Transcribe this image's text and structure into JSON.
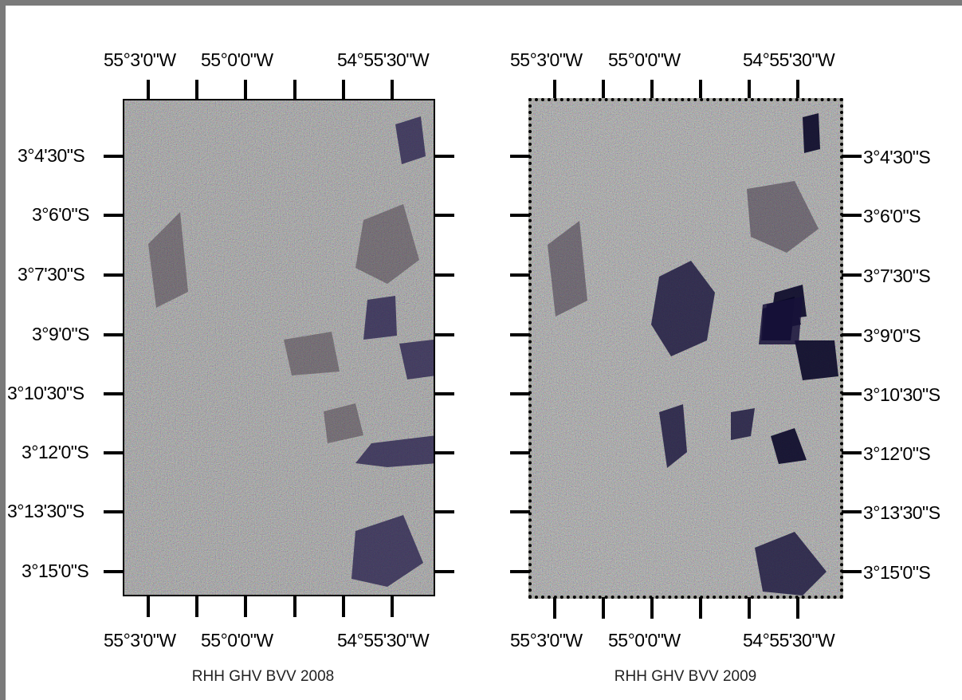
{
  "maps": [
    {
      "caption": "RHH GHV BVV 2008",
      "lon_top": [
        "55°3'0\"W",
        "55°0'0\"W",
        "54°55'30\"W"
      ],
      "lon_bottom": [
        "55°3'0\"W",
        "55°0'0\"W",
        "54°55'30\"W"
      ],
      "lat": [
        "3°4'30\"S",
        "3°6'0\"S",
        "3°7'30\"S",
        "3°9'0\"S",
        "3°10'30\"S",
        "3°12'0\"S",
        "3°13'30\"S",
        "3°15'0\"S"
      ],
      "lat_side": "left"
    },
    {
      "caption": "RHH GHV BVV 2009",
      "lon_top": [
        "55°3'0\"W",
        "55°0'0\"W",
        "54°55'30\"W"
      ],
      "lon_bottom": [
        "55°3'0\"W",
        "55°0'0\"W",
        "54°55'30\"W"
      ],
      "lat": [
        "3°4'30\"S",
        "3°6'0\"S",
        "3°7'30\"S",
        "3°9'0\"S",
        "3°10'30\"S",
        "3°12'0\"S",
        "3°13'30\"S",
        "3°15'0\"S"
      ],
      "lat_side": "right"
    }
  ],
  "colors": {
    "background": "#a7a7a2",
    "dark_patch": "#1a1440",
    "frame": "#7a7a7a"
  }
}
